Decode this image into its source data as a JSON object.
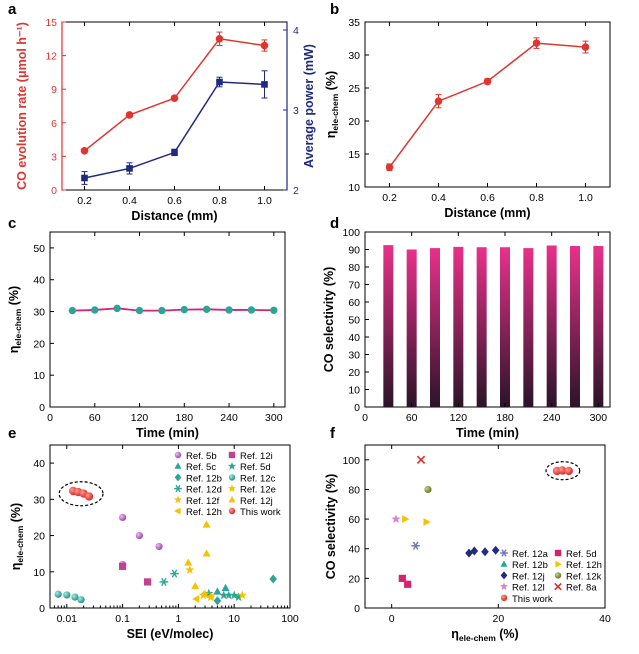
{
  "chart_data": [
    {
      "panel": "a",
      "type": "line",
      "xlabel": "Distance (mm)",
      "ylabel_left": "CO evolution rate (μmol h⁻¹)",
      "ylabel_right": "Average power (mW)",
      "x": [
        0.2,
        0.4,
        0.6,
        0.8,
        1.0
      ],
      "xlim": [
        0.1,
        1.1
      ],
      "xticks": [
        "0.2",
        "0.4",
        "0.6",
        "0.8",
        "1.0"
      ],
      "ylim_left": [
        0,
        15
      ],
      "yticks_left": [
        "0",
        "3",
        "6",
        "9",
        "12",
        "15"
      ],
      "ylim_right": [
        2,
        4.1
      ],
      "yticks_right": [
        "2",
        "3",
        "4"
      ],
      "series": [
        {
          "axis": "left",
          "color": "#e0342f",
          "marker": "circle",
          "values": [
            3.5,
            6.7,
            8.2,
            13.5,
            12.9
          ],
          "errors": [
            0.2,
            0.2,
            0.2,
            0.6,
            0.5
          ]
        },
        {
          "axis": "right",
          "color": "#1f2a80",
          "marker": "square",
          "values": [
            2.15,
            2.27,
            2.47,
            3.35,
            3.32
          ],
          "errors": [
            0.08,
            0.07,
            0.04,
            0.06,
            0.17
          ]
        }
      ]
    },
    {
      "panel": "b",
      "type": "line",
      "xlabel": "Distance (mm)",
      "ylabel": "η",
      "ylabel_sub": "ele-chem",
      "ylabel_unit": " (%)",
      "x": [
        0.2,
        0.4,
        0.6,
        0.8,
        1.0
      ],
      "xlim": [
        0.1,
        1.1
      ],
      "xticks": [
        "0.2",
        "0.4",
        "0.6",
        "0.8",
        "1.0"
      ],
      "ylim": [
        10,
        35
      ],
      "yticks": [
        "10",
        "15",
        "20",
        "25",
        "30",
        "35"
      ],
      "series": [
        {
          "color": "#e0342f",
          "marker": "circle",
          "values": [
            13.0,
            23.0,
            26.0,
            31.8,
            31.2
          ],
          "errors": [
            0.5,
            1.0,
            0.4,
            0.8,
            0.9
          ]
        }
      ]
    },
    {
      "panel": "c",
      "type": "line",
      "xlabel": "Time (min)",
      "ylabel": "η",
      "ylabel_sub": "ele-chem",
      "ylabel_unit": " (%)",
      "xlim": [
        0,
        315
      ],
      "xticks": [
        "0",
        "60",
        "120",
        "180",
        "240",
        "300"
      ],
      "ylim": [
        0,
        55
      ],
      "yticks": [
        "0",
        "10",
        "20",
        "30",
        "40",
        "50"
      ],
      "x": [
        30,
        60,
        90,
        120,
        150,
        180,
        210,
        240,
        270,
        300
      ],
      "series": [
        {
          "color": "#d6246e",
          "marker": "circle",
          "marker_color": "#2aa598",
          "values": [
            30.3,
            30.5,
            31.0,
            30.3,
            30.3,
            30.6,
            30.7,
            30.5,
            30.5,
            30.4
          ]
        }
      ]
    },
    {
      "panel": "d",
      "type": "bar",
      "xlabel": "Time (min)",
      "ylabel": "CO selectivity (%)",
      "xlim": [
        0,
        315
      ],
      "xticks": [
        "0",
        "60",
        "120",
        "180",
        "240",
        "300"
      ],
      "ylim": [
        0,
        100
      ],
      "yticks": [
        "0",
        "10",
        "20",
        "30",
        "40",
        "50",
        "60",
        "70",
        "80",
        "90",
        "100"
      ],
      "x": [
        30,
        60,
        90,
        120,
        150,
        180,
        210,
        240,
        270,
        300
      ],
      "values": [
        92.5,
        90.0,
        90.8,
        91.5,
        91.3,
        91.3,
        90.8,
        92.3,
        92.0,
        92.0
      ],
      "color_top": "#e8318a",
      "color_bottom": "#2a1428"
    },
    {
      "panel": "e",
      "type": "scatter",
      "xlabel": "SEI (eV/molec)",
      "ylabel": "η",
      "ylabel_sub": "ele-chem",
      "ylabel_unit": " (%)",
      "xscale": "log",
      "xlim": [
        0.005,
        100
      ],
      "xticks": [
        "0.01",
        "0.1",
        "1",
        "10",
        "100"
      ],
      "ylim": [
        0,
        45
      ],
      "yticks": [
        "0",
        "10",
        "20",
        "30",
        "40"
      ],
      "legend_position": "top-right",
      "highlight": "This work",
      "series": [
        {
          "name": "Ref. 5b",
          "marker": "sphere",
          "color": "#b86cc2",
          "points": [
            [
              0.1,
              25
            ],
            [
              0.2,
              20
            ],
            [
              0.45,
              17
            ],
            [
              0.1,
              12
            ]
          ]
        },
        {
          "name": "Ref. 12i",
          "marker": "square",
          "color": "#c2408e",
          "points": [
            [
              0.1,
              11.5
            ],
            [
              0.28,
              7.2
            ]
          ]
        },
        {
          "name": "Ref. 5c",
          "marker": "triangle-up",
          "color": "#2aa598",
          "points": [
            [
              7.0,
              5.5
            ],
            [
              5.0,
              4.5
            ]
          ]
        },
        {
          "name": "Ref. 5d",
          "marker": "star",
          "color": "#2aa598",
          "points": [
            [
              3.5,
              4.0
            ],
            [
              6.5,
              3.5
            ],
            [
              8.0,
              3.5
            ],
            [
              10.0,
              3.5
            ],
            [
              12.0,
              3.0
            ]
          ]
        },
        {
          "name": "Ref. 12b",
          "marker": "diamond",
          "color": "#2aa598",
          "points": [
            [
              50.0,
              8.0
            ],
            [
              5.0,
              2.0
            ]
          ]
        },
        {
          "name": "Ref. 12c",
          "marker": "sphere",
          "color": "#2aa598",
          "points": [
            [
              0.007,
              3.8
            ],
            [
              0.01,
              3.6
            ],
            [
              0.014,
              3.0
            ],
            [
              0.018,
              2.3
            ]
          ]
        },
        {
          "name": "Ref. 12d",
          "marker": "asterisk",
          "color": "#2aa598",
          "points": [
            [
              0.55,
              7.2
            ],
            [
              0.85,
              9.5
            ]
          ]
        },
        {
          "name": "Ref. 12e",
          "marker": "star",
          "color": "#f5c200",
          "points": [
            [
              2.8,
              3.5
            ],
            [
              3.8,
              3.0
            ],
            [
              14.0,
              3.5
            ]
          ]
        },
        {
          "name": "Ref. 12f",
          "marker": "star",
          "color": "#f5c200",
          "points": [
            [
              1.6,
              10.5
            ],
            [
              3.0,
              3.8
            ]
          ]
        },
        {
          "name": "Ref. 12j",
          "marker": "triangle-up",
          "color": "#f5c200",
          "points": [
            [
              3.2,
              23.0
            ],
            [
              3.2,
              15.0
            ],
            [
              1.5,
              12.5
            ],
            [
              2.0,
              6.0
            ]
          ]
        },
        {
          "name": "Ref. 12h",
          "marker": "triangle-left",
          "color": "#f5c200",
          "points": [
            [
              2.1,
              2.5
            ],
            [
              3.8,
              3.0
            ]
          ]
        },
        {
          "name": "This work",
          "marker": "sphere",
          "color": "#e0342f",
          "points": [
            [
              0.013,
              32.3
            ],
            [
              0.016,
              32.0
            ],
            [
              0.02,
              31.6
            ],
            [
              0.025,
              30.8
            ]
          ]
        }
      ]
    },
    {
      "panel": "f",
      "type": "scatter",
      "xlabel": "η",
      "xlabel_sub": "ele-chem",
      "xlabel_unit": " (%)",
      "ylabel": "CO selectivity (%)",
      "xlim": [
        -5,
        40
      ],
      "xticks": [
        "0",
        "20",
        "40"
      ],
      "ylim": [
        0,
        110
      ],
      "yticks": [
        "0",
        "20",
        "40",
        "60",
        "80",
        "100"
      ],
      "legend_position": "bottom-right",
      "highlight": "This work",
      "series": [
        {
          "name": "Ref. 12a",
          "marker": "asterisk",
          "color": "#6d74b8",
          "points": [
            [
              4.5,
              42.0
            ]
          ]
        },
        {
          "name": "Ref. 5d",
          "marker": "square",
          "color": "#d6246e",
          "points": [
            [
              2.0,
              20.0
            ],
            [
              3.0,
              16.0
            ]
          ]
        },
        {
          "name": "Ref. 12b",
          "marker": "triangle-up",
          "color": "#2aa598",
          "points": []
        },
        {
          "name": "Ref. 12h",
          "marker": "triangle-right",
          "color": "#f5c200",
          "points": [
            [
              2.5,
              60.0
            ],
            [
              6.5,
              58.0
            ]
          ]
        },
        {
          "name": "Ref. 12j",
          "marker": "diamond",
          "color": "#1f2a80",
          "points": [
            [
              14.5,
              37.0
            ],
            [
              15.5,
              38.5
            ],
            [
              17.5,
              38.0
            ],
            [
              19.5,
              39.0
            ]
          ]
        },
        {
          "name": "Ref. 12k",
          "marker": "sphere",
          "color": "#6f7e2a",
          "points": [
            [
              6.8,
              80.0
            ]
          ]
        },
        {
          "name": "Ref. 12l",
          "marker": "star",
          "color": "#d583d6",
          "points": [
            [
              0.8,
              60.0
            ]
          ]
        },
        {
          "name": "Ref. 8a",
          "marker": "cross",
          "color": "#d32f2f",
          "points": [
            [
              5.5,
              100.0
            ]
          ]
        },
        {
          "name": "This work",
          "marker": "sphere",
          "color": "#e0342f",
          "points": [
            [
              31.0,
              92.5
            ],
            [
              32.0,
              92.8
            ],
            [
              33.2,
              92.5
            ]
          ]
        }
      ]
    }
  ]
}
